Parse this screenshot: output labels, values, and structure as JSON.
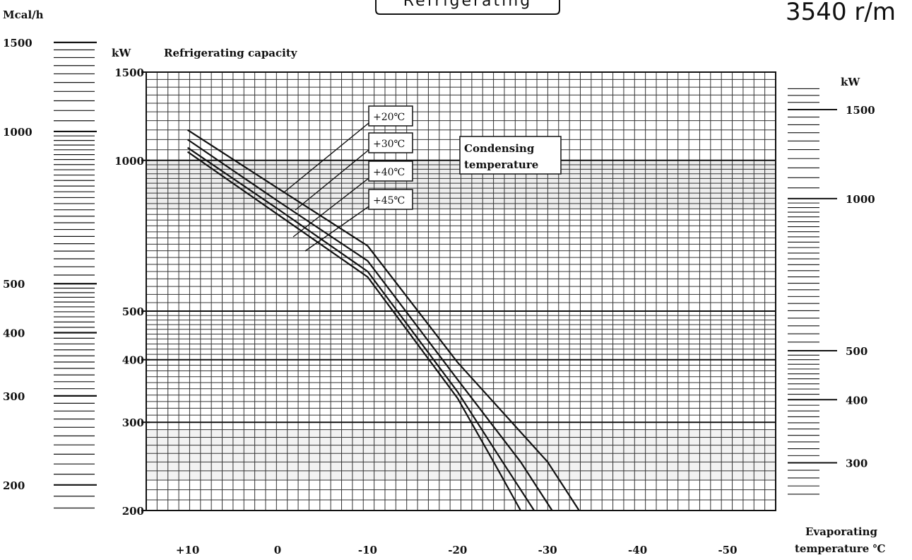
{
  "header": {
    "title_fragment": "Refrigerating",
    "speed": "3540 r/m"
  },
  "chart_data": {
    "type": "line",
    "title": "Refrigerating capacity",
    "x_axis": {
      "label_line1": "Evaporating",
      "label_line2": "temperature ℃",
      "reversed": true,
      "range": [
        13.5,
        -55
      ],
      "ticks": [
        10,
        0,
        -10,
        -20,
        -30,
        -40,
        -50
      ],
      "tick_labels": [
        "+10",
        "0",
        "-10",
        "-20",
        "-30",
        "-40",
        "-50"
      ]
    },
    "y_axis": {
      "scale": "log",
      "unit": "kW",
      "range": [
        200,
        1500
      ],
      "ticks": [
        200,
        300,
        400,
        500,
        1000,
        1500
      ],
      "tick_labels": [
        "200",
        "300",
        "400",
        "500",
        "1000",
        "1500"
      ]
    },
    "left_scale": {
      "unit": "Mcal/h",
      "ticks": [
        200,
        300,
        400,
        500,
        1000,
        1500
      ],
      "tick_labels": [
        "200",
        "300",
        "400",
        "500",
        "1000",
        "1500"
      ]
    },
    "right_scale": {
      "unit": "kW",
      "ticks": [
        300,
        400,
        500,
        1000,
        1500
      ],
      "tick_labels": [
        "300",
        "400",
        "500",
        "1000",
        "1500"
      ]
    },
    "legend_title_line1": "Condensing",
    "legend_title_line2": "temperature",
    "series": [
      {
        "name": "+20℃",
        "points": [
          [
            10,
            1150
          ],
          [
            0,
            880
          ],
          [
            -10,
            675
          ],
          [
            -20,
            395
          ],
          [
            -30,
            250
          ],
          [
            -33.5,
            200
          ]
        ]
      },
      {
        "name": "+30℃",
        "points": [
          [
            10,
            1100
          ],
          [
            0,
            830
          ],
          [
            -10,
            630
          ],
          [
            -20,
            365
          ],
          [
            -27,
            250
          ],
          [
            -30.5,
            200
          ]
        ]
      },
      {
        "name": "+40℃",
        "points": [
          [
            10,
            1060
          ],
          [
            0,
            800
          ],
          [
            -10,
            600
          ],
          [
            -20,
            345
          ],
          [
            -25,
            250
          ],
          [
            -28.5,
            200
          ]
        ]
      },
      {
        "name": "+45℃",
        "points": [
          [
            10,
            1040
          ],
          [
            0,
            780
          ],
          [
            -10,
            585
          ],
          [
            -20,
            335
          ],
          [
            -24,
            250
          ],
          [
            -27,
            200
          ]
        ]
      }
    ],
    "grid": true
  }
}
